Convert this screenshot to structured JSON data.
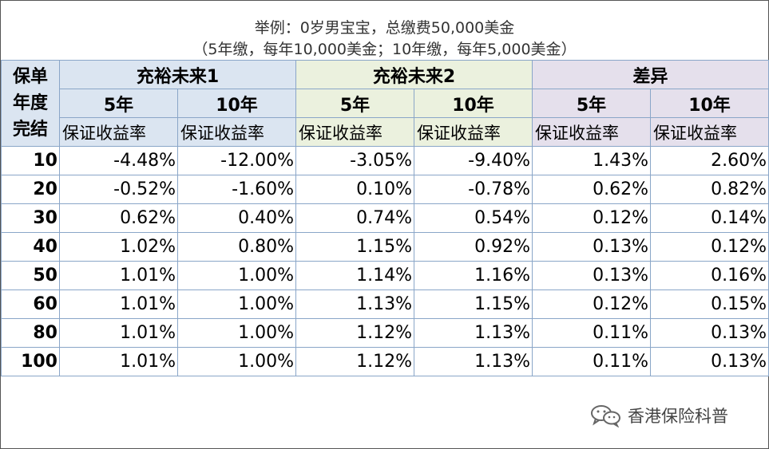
{
  "caption": {
    "line1": "举例：0岁男宝宝，总缴费50,000美金",
    "line2": "（5年缴，每年10,000美金；10年缴，每年5,000美金）"
  },
  "table": {
    "corner_label_lines": [
      "保单",
      "年度",
      "完结"
    ],
    "groups": [
      "充裕未来1",
      "充裕未来2",
      "差异"
    ],
    "sub_periods": [
      "5年",
      "10年",
      "5年",
      "10年",
      "5年",
      "10年"
    ],
    "metric_label": "保证收益率",
    "rows": [
      {
        "year": "10",
        "values": [
          "-4.48%",
          "-12.00%",
          "-3.05%",
          "-9.40%",
          "1.43%",
          "2.60%"
        ]
      },
      {
        "year": "20",
        "values": [
          "-0.52%",
          "-1.60%",
          "0.10%",
          "-0.78%",
          "0.62%",
          "0.82%"
        ]
      },
      {
        "year": "30",
        "values": [
          "0.62%",
          "0.40%",
          "0.74%",
          "0.54%",
          "0.12%",
          "0.14%"
        ]
      },
      {
        "year": "40",
        "values": [
          "1.02%",
          "0.80%",
          "1.15%",
          "0.92%",
          "0.13%",
          "0.12%"
        ]
      },
      {
        "year": "50",
        "values": [
          "1.01%",
          "1.00%",
          "1.14%",
          "1.16%",
          "0.13%",
          "0.16%"
        ]
      },
      {
        "year": "60",
        "values": [
          "1.01%",
          "1.00%",
          "1.13%",
          "1.15%",
          "0.12%",
          "0.15%"
        ]
      },
      {
        "year": "80",
        "values": [
          "1.01%",
          "1.00%",
          "1.12%",
          "1.13%",
          "0.11%",
          "0.13%"
        ]
      },
      {
        "year": "100",
        "values": [
          "1.01%",
          "1.00%",
          "1.12%",
          "1.13%",
          "0.11%",
          "0.13%"
        ]
      }
    ]
  },
  "watermark": {
    "text": "香港保险科普",
    "icon": "wechat-icon"
  },
  "colors": {
    "group1": "#dbe5f1",
    "group2": "#ebf1de",
    "group3": "#e5e0ec",
    "border": "#8aa6c8"
  }
}
